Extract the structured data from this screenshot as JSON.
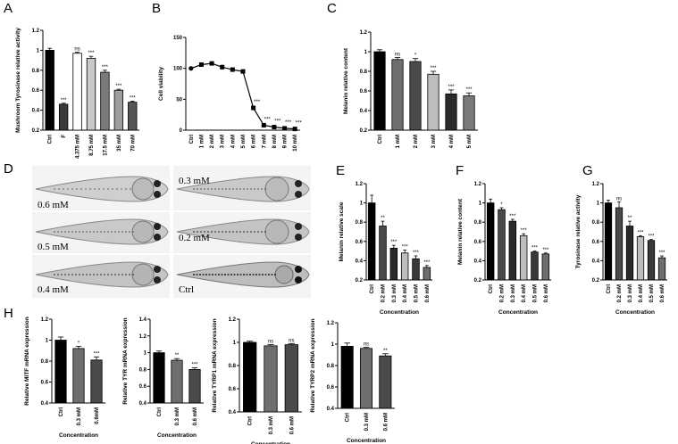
{
  "figure": {
    "zebrafish_labels": [
      "0.6 mM",
      "0.3 mM",
      "0.5 mM",
      "0.2 mM",
      "0.4 mM",
      "Ctrl"
    ],
    "panel_D_label": "D",
    "panel_H_label": "H"
  },
  "chart_data": [
    {
      "id": "A",
      "label": "A",
      "type": "bar",
      "title": "",
      "ylabel": "Mushroom Tyrosinase relative activity",
      "xlabel": "",
      "categories": [
        "Ctrl",
        "F",
        "4.375 mM",
        "8.75 mM",
        "17.5 mM",
        "35 mM",
        "70 mM"
      ],
      "values": [
        1.0,
        0.46,
        0.97,
        0.92,
        0.78,
        0.6,
        0.48
      ],
      "errors": [
        0.02,
        0.01,
        0.01,
        0.02,
        0.02,
        0.01,
        0.01
      ],
      "sig": [
        "",
        "***",
        "ns",
        "***",
        "***",
        "***",
        "***"
      ],
      "ylim": [
        0.2,
        1.2
      ],
      "yticks": [
        0.2,
        0.4,
        0.6,
        0.8,
        1.0,
        1.2
      ],
      "colors": [
        "#000000",
        "#3a3a3a",
        "#ffffff",
        "#c8c8c8",
        "#7a7a7a",
        "#9e9e9e",
        "#555555"
      ]
    },
    {
      "id": "B",
      "label": "B",
      "type": "line",
      "title": "",
      "ylabel": "Cell viability",
      "xlabel": "",
      "categories": [
        "Ctrl",
        "1 mM",
        "2 mM",
        "3 mM",
        "4 mM",
        "5 mM",
        "6 mM",
        "7 mM",
        "8 mM",
        "9 mM",
        "10 mM"
      ],
      "values": [
        100,
        106,
        108,
        102,
        98,
        95,
        36,
        8,
        5,
        3,
        2
      ],
      "errors": [
        1,
        2,
        3,
        4,
        3,
        2,
        3,
        1,
        1,
        1,
        1
      ],
      "sig": [
        "",
        "",
        "",
        "",
        "",
        "",
        "***",
        "***",
        "***",
        "***",
        "***"
      ],
      "ylim": [
        0,
        150
      ],
      "yticks": [
        0,
        50,
        100,
        150
      ]
    },
    {
      "id": "C",
      "label": "C",
      "type": "bar",
      "title": "",
      "ylabel": "Melanin relative content",
      "xlabel": "",
      "categories": [
        "Ctrl",
        "1 mM",
        "2 mM",
        "3 mM",
        "4 mM",
        "5 mM"
      ],
      "values": [
        1.0,
        0.92,
        0.9,
        0.77,
        0.57,
        0.55
      ],
      "errors": [
        0.02,
        0.02,
        0.03,
        0.03,
        0.04,
        0.03
      ],
      "sig": [
        "",
        "ns",
        "*",
        "***",
        "***",
        "***"
      ],
      "ylim": [
        0.2,
        1.2
      ],
      "yticks": [
        0.2,
        0.4,
        0.6,
        0.8,
        1.0,
        1.2
      ],
      "colors": [
        "#000000",
        "#6e6e6e",
        "#4a4a4a",
        "#bdbdbd",
        "#2a2a2a",
        "#7a7a7a"
      ]
    },
    {
      "id": "E",
      "label": "E",
      "type": "bar",
      "title": "",
      "ylabel": "Melanin relative scale",
      "xlabel": "Concentration",
      "categories": [
        "Ctrl",
        "0.2 mM",
        "0.3 mM",
        "0.4 mM",
        "0.5 mM",
        "0.6 mM"
      ],
      "values": [
        1.0,
        0.76,
        0.53,
        0.48,
        0.42,
        0.33
      ],
      "errors": [
        0.08,
        0.05,
        0.03,
        0.03,
        0.03,
        0.02
      ],
      "sig": [
        "",
        "**",
        "***",
        "***",
        "***",
        "***"
      ],
      "ylim": [
        0.2,
        1.2
      ],
      "yticks": [
        0.2,
        0.4,
        0.6,
        0.8,
        1.0,
        1.2
      ],
      "colors": [
        "#000000",
        "#4a4a4a",
        "#2a2a2a",
        "#bdbdbd",
        "#3a3a3a",
        "#6e6e6e"
      ]
    },
    {
      "id": "F",
      "label": "F",
      "type": "bar",
      "title": "",
      "ylabel": "Melanin relative content",
      "xlabel": "Concentration",
      "categories": [
        "Ctrl",
        "0.2 mM",
        "0.3 mM",
        "0.4 mM",
        "0.5 mM",
        "0.6 mM"
      ],
      "values": [
        1.0,
        0.93,
        0.81,
        0.66,
        0.49,
        0.47
      ],
      "errors": [
        0.04,
        0.02,
        0.02,
        0.02,
        0.01,
        0.01
      ],
      "sig": [
        "",
        "*",
        "***",
        "***",
        "***",
        "***"
      ],
      "ylim": [
        0.2,
        1.2
      ],
      "yticks": [
        0.2,
        0.4,
        0.6,
        0.8,
        1.0,
        1.2
      ],
      "colors": [
        "#000000",
        "#4a4a4a",
        "#2a2a2a",
        "#bdbdbd",
        "#3a3a3a",
        "#6e6e6e"
      ]
    },
    {
      "id": "G",
      "label": "G",
      "type": "bar",
      "title": "",
      "ylabel": "Tyrosinase relative activity",
      "xlabel": "Concentration",
      "categories": [
        "Ctrl",
        "0.2 mM",
        "0.3 mM",
        "0.4 mM",
        "0.5 mM",
        "0.6 mM"
      ],
      "values": [
        1.0,
        0.95,
        0.76,
        0.65,
        0.61,
        0.43
      ],
      "errors": [
        0.03,
        0.06,
        0.05,
        0.01,
        0.01,
        0.02
      ],
      "sig": [
        "",
        "ns",
        "**",
        "***",
        "***",
        "***"
      ],
      "ylim": [
        0.2,
        1.2
      ],
      "yticks": [
        0.2,
        0.4,
        0.6,
        0.8,
        1.0,
        1.2
      ],
      "colors": [
        "#000000",
        "#4a4a4a",
        "#2a2a2a",
        "#bdbdbd",
        "#3a3a3a",
        "#6e6e6e"
      ]
    },
    {
      "id": "H1",
      "label": "",
      "type": "bar",
      "title": "",
      "ylabel": "Relative MITF mRNA expression",
      "xlabel": "Concentration",
      "categories": [
        "Ctrl",
        "0.3 mM",
        "0.6mM"
      ],
      "values": [
        1.0,
        0.92,
        0.81
      ],
      "errors": [
        0.03,
        0.02,
        0.03
      ],
      "sig": [
        "",
        "*",
        "***"
      ],
      "ylim": [
        0.4,
        1.2
      ],
      "yticks": [
        0.4,
        0.6,
        0.8,
        1.0,
        1.2
      ],
      "colors": [
        "#000000",
        "#6e6e6e",
        "#4a4a4a"
      ]
    },
    {
      "id": "H2",
      "label": "",
      "type": "bar",
      "title": "",
      "ylabel": "Relative TYR mRNA expression",
      "xlabel": "Concentration",
      "categories": [
        "Ctrl",
        "0.3 mM",
        "0.6 mM"
      ],
      "values": [
        1.0,
        0.91,
        0.8
      ],
      "errors": [
        0.02,
        0.02,
        0.02
      ],
      "sig": [
        "",
        "**",
        "***"
      ],
      "ylim": [
        0.4,
        1.4
      ],
      "yticks": [
        0.4,
        0.6,
        0.8,
        1.0,
        1.2,
        1.4
      ],
      "colors": [
        "#000000",
        "#6e6e6e",
        "#4a4a4a"
      ]
    },
    {
      "id": "H3",
      "label": "",
      "type": "bar",
      "title": "",
      "ylabel": "Relative TYRP1 mRNA expression",
      "xlabel": "Concentration",
      "categories": [
        "Ctrl",
        "0.3 mM",
        "0.6 mM"
      ],
      "values": [
        1.0,
        0.97,
        0.98
      ],
      "errors": [
        0.01,
        0.01,
        0.01
      ],
      "sig": [
        "",
        "ns",
        "ns"
      ],
      "ylim": [
        0.4,
        1.2
      ],
      "yticks": [
        0.4,
        0.6,
        0.8,
        1.0,
        1.2
      ],
      "colors": [
        "#000000",
        "#6e6e6e",
        "#4a4a4a"
      ]
    },
    {
      "id": "H4",
      "label": "",
      "type": "bar",
      "title": "",
      "ylabel": "Relative TYRP2 mRNA expression",
      "xlabel": "Concentration",
      "categories": [
        "Ctrl",
        "0.3 mM",
        "0.6 mM"
      ],
      "values": [
        0.98,
        0.96,
        0.89
      ],
      "errors": [
        0.03,
        0.01,
        0.02
      ],
      "sig": [
        "",
        "ns",
        "**"
      ],
      "ylim": [
        0.4,
        1.2
      ],
      "yticks": [
        0.4,
        0.6,
        0.8,
        1.0,
        1.2
      ],
      "colors": [
        "#000000",
        "#6e6e6e",
        "#4a4a4a"
      ]
    }
  ]
}
